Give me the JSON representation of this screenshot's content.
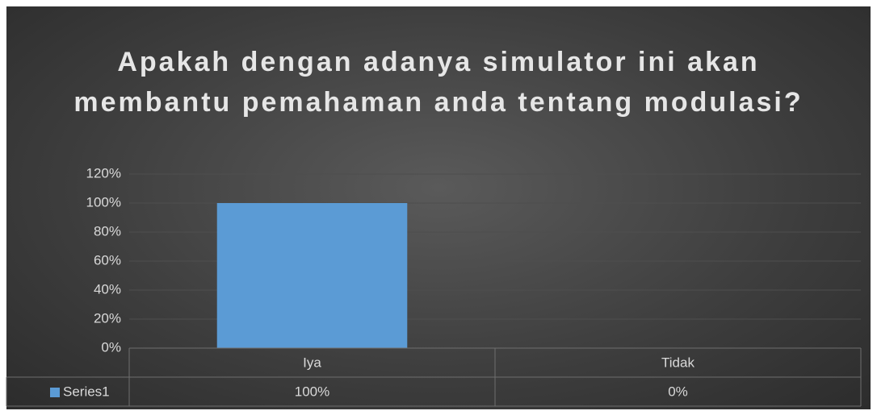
{
  "chart_data": {
    "type": "bar",
    "title": "Apakah dengan adanya simulator ini akan membantu pemahaman anda tentang modulasi?",
    "categories": [
      "Iya",
      "Tidak"
    ],
    "series": [
      {
        "name": "Series1",
        "color": "#5b9bd5",
        "values": [
          100,
          0
        ],
        "value_labels": [
          "100%",
          "0%"
        ]
      }
    ],
    "ylim": [
      0,
      120
    ],
    "yticks": [
      {
        "value": 0,
        "label": "0%"
      },
      {
        "value": 20,
        "label": "20%"
      },
      {
        "value": 40,
        "label": "40%"
      },
      {
        "value": 60,
        "label": "60%"
      },
      {
        "value": 80,
        "label": "80%"
      },
      {
        "value": 100,
        "label": "100%"
      },
      {
        "value": 120,
        "label": "120%"
      }
    ],
    "grid": true,
    "data_table": true
  }
}
